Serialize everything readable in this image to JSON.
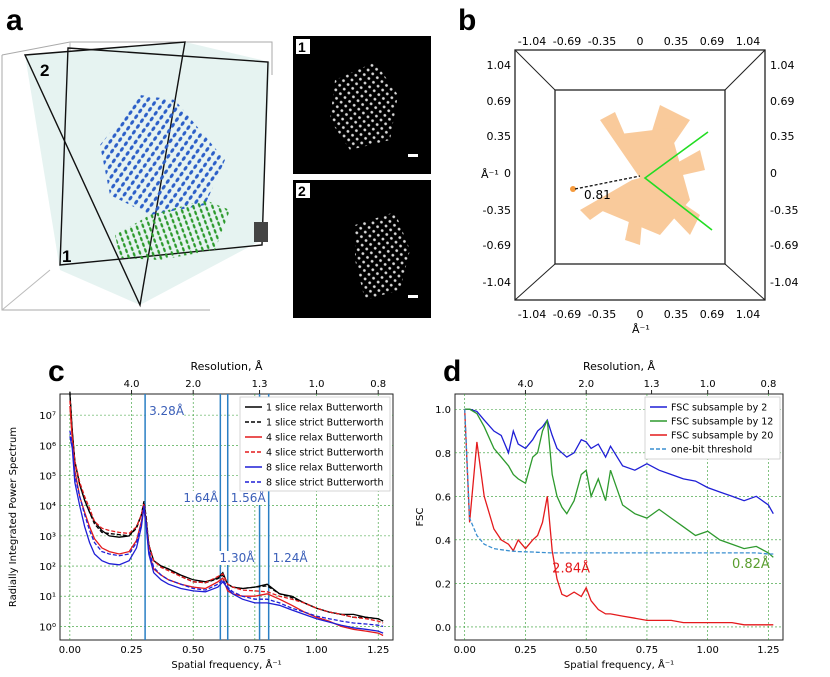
{
  "panels": {
    "a": {
      "label": "a",
      "plane1": "1",
      "plane2": "2",
      "inset1_num": "1",
      "inset2_num": "2"
    },
    "b": {
      "label": "b",
      "top_ticks": [
        "-1.04",
        "-0.69",
        "-0.35",
        "0",
        "0.35",
        "0.69",
        "1.04"
      ],
      "bottom_ticks": [
        "-1.04",
        "-0.69",
        "-0.35",
        "0",
        "0.35",
        "0.69",
        "1.04"
      ],
      "left_ticks": [
        "1.04",
        "0.69",
        "0.35",
        "0",
        "-0.35",
        "-0.69",
        "-1.04"
      ],
      "right_ticks": [
        "1.04",
        "0.69",
        "0.35",
        "0",
        "-0.35",
        "-0.69",
        "-1.04"
      ],
      "y_label": "Å⁻¹",
      "x_label": "Å⁻¹",
      "annotation": "0.81"
    },
    "c": {
      "label": "c"
    },
    "d": {
      "label": "d"
    }
  },
  "chart_data": [
    {
      "type": "line",
      "id": "c",
      "title": "Resolution, Å",
      "xlabel": "Spatial frequency, Å⁻¹",
      "ylabel": "Radially Integrated Power Spectrum",
      "xlim": [
        -0.04,
        1.31
      ],
      "ylim_log10": [
        -0.45,
        7.7
      ],
      "xticks": [
        "0.00",
        "0.25",
        "0.50",
        "0.75",
        "1.00",
        "1.25"
      ],
      "yticks": [
        "10⁰",
        "10¹",
        "10²",
        "10³",
        "10⁴",
        "10⁵",
        "10⁶",
        "10⁷"
      ],
      "top_ticks": [
        {
          "label": "4.0",
          "x": 0.25
        },
        {
          "label": "2.0",
          "x": 0.5
        },
        {
          "label": "1.3",
          "x": 0.769
        },
        {
          "label": "1.0",
          "x": 1.0
        },
        {
          "label": "0.8",
          "x": 1.25
        }
      ],
      "vlines": [
        {
          "x": 0.305,
          "label": "3.28Å"
        },
        {
          "x": 0.61,
          "label": "1.64Å"
        },
        {
          "x": 0.64,
          "label": "1.56Å"
        },
        {
          "x": 0.769,
          "label": "1.30Å"
        },
        {
          "x": 0.806,
          "label": "1.24Å"
        }
      ],
      "legend": [
        {
          "name": "1 slice relax Butterworth",
          "color": "#000000",
          "dash": false
        },
        {
          "name": "1 slice strict Butterworth",
          "color": "#000000",
          "dash": true
        },
        {
          "name": "4 slice relax Butterworth",
          "color": "#e41a1c",
          "dash": false
        },
        {
          "name": "4 slice strict Butterworth",
          "color": "#e41a1c",
          "dash": true
        },
        {
          "name": "8 slice relax Butterworth",
          "color": "#1f1fd6",
          "dash": false
        },
        {
          "name": "8 slice strict Butterworth",
          "color": "#1f1fd6",
          "dash": true
        }
      ],
      "x": [
        0.0,
        0.01,
        0.02,
        0.04,
        0.06,
        0.08,
        0.1,
        0.13,
        0.16,
        0.2,
        0.24,
        0.27,
        0.29,
        0.3,
        0.31,
        0.32,
        0.34,
        0.37,
        0.4,
        0.45,
        0.5,
        0.55,
        0.6,
        0.62,
        0.64,
        0.66,
        0.7,
        0.75,
        0.8,
        0.85,
        0.9,
        0.95,
        1.0,
        1.05,
        1.1,
        1.15,
        1.2,
        1.25,
        1.27
      ],
      "series": [
        {
          "name": "1 slice relax Butterworth",
          "color": "#000000",
          "dash": false,
          "values": [
            50000000.0,
            3000000.0,
            300000.0,
            50000.0,
            15000.0,
            6000.0,
            3000.0,
            1500.0,
            1000.0,
            900,
            1000,
            2000.0,
            5000.0,
            12000.0,
            3000.0,
            500,
            150,
            100,
            80,
            50,
            35,
            30,
            40,
            60,
            25,
            20,
            18,
            20,
            25,
            12,
            10,
            6,
            4,
            3,
            2.5,
            2.5,
            2,
            1.8,
            1.5
          ]
        },
        {
          "name": "1 slice strict Butterworth",
          "color": "#000000",
          "dash": true,
          "values": [
            60000000.0,
            2500000.0,
            300000.0,
            50000.0,
            15000.0,
            6000.0,
            2500.0,
            1300.0,
            1200.0,
            1100.0,
            1000,
            1800.0,
            5000.0,
            14000.0,
            4000.0,
            500,
            150,
            100,
            80,
            45,
            30,
            28,
            38,
            50,
            25,
            20,
            18,
            20,
            22,
            12,
            9,
            6,
            4,
            3,
            2.5,
            2,
            2,
            1.8,
            1.5
          ]
        },
        {
          "name": "4 slice relax Butterworth",
          "color": "#e41a1c",
          "dash": false,
          "values": [
            20000000.0,
            1500000.0,
            150000.0,
            20000.0,
            6000.0,
            2000.0,
            800,
            400,
            300,
            250,
            300,
            700,
            3000.0,
            8000.0,
            2000.0,
            300,
            80,
            50,
            35,
            25,
            20,
            18,
            30,
            40,
            15,
            12,
            10,
            10,
            12,
            8,
            5,
            3,
            2,
            1.5,
            1,
            0.8,
            0.7,
            0.6,
            0.5
          ]
        },
        {
          "name": "4 slice strict Butterworth",
          "color": "#e41a1c",
          "dash": true,
          "values": [
            30000000.0,
            2000000.0,
            300000.0,
            60000.0,
            20000.0,
            8000.0,
            3000.0,
            1800.0,
            1500.0,
            1300.0,
            1200,
            2000.0,
            5000.0,
            12000.0,
            3000.0,
            500,
            150,
            90,
            70,
            45,
            30,
            28,
            45,
            55,
            25,
            20,
            16,
            15,
            14,
            10,
            8,
            6,
            4,
            3,
            2.5,
            2,
            1.8,
            1.5,
            1.3
          ]
        },
        {
          "name": "8 slice relax Butterworth",
          "color": "#1f1fd6",
          "dash": false,
          "values": [
            2000000.0,
            800000.0,
            60000.0,
            10000.0,
            2000.0,
            600,
            250,
            150,
            120,
            110,
            150,
            400,
            2000.0,
            9000.0,
            2000.0,
            250,
            60,
            35,
            25,
            18,
            15,
            14,
            20,
            30,
            18,
            12,
            8,
            6,
            6,
            5,
            3.5,
            2.5,
            1.8,
            1.4,
            1.1,
            0.9,
            0.8,
            0.7,
            0.6
          ]
        },
        {
          "name": "8 slice strict Butterworth",
          "color": "#1f1fd6",
          "dash": true,
          "values": [
            3000000.0,
            1000000.0,
            100000.0,
            20000.0,
            5000.0,
            1500.0,
            600,
            300,
            250,
            220,
            250,
            600,
            2500.0,
            10000.0,
            2500.0,
            350,
            90,
            50,
            35,
            25,
            18,
            16,
            25,
            35,
            20,
            14,
            10,
            8,
            8,
            6,
            4,
            3,
            2.2,
            1.8,
            1.5,
            1.3,
            1.2,
            1.1,
            1
          ]
        }
      ]
    },
    {
      "type": "line",
      "id": "d",
      "title": "Resolution, Å",
      "xlabel": "Spatial frequency, Å⁻¹",
      "ylabel": "FSC",
      "xlim": [
        -0.04,
        1.31
      ],
      "ylim": [
        -0.06,
        1.07
      ],
      "xticks": [
        "0.00",
        "0.25",
        "0.50",
        "0.75",
        "1.00",
        "1.25"
      ],
      "yticks": [
        "0.0",
        "0.2",
        "0.4",
        "0.6",
        "0.8",
        "1.0"
      ],
      "top_ticks": [
        {
          "label": "4.0",
          "x": 0.25
        },
        {
          "label": "2.0",
          "x": 0.5
        },
        {
          "label": "1.3",
          "x": 0.769
        },
        {
          "label": "1.0",
          "x": 1.0
        },
        {
          "label": "0.8",
          "x": 1.25
        }
      ],
      "annotations": [
        {
          "text": "2.84Å",
          "x": 0.36,
          "y": 0.25,
          "color": "#e41a1c"
        },
        {
          "text": "0.82Å",
          "x": 1.1,
          "y": 0.27,
          "color": "#5a9e2f"
        }
      ],
      "legend": [
        {
          "name": "FSC subsample by 2",
          "color": "#1f1fd6",
          "dash": false
        },
        {
          "name": "FSC subsample by 12",
          "color": "#2e9a2e",
          "dash": false
        },
        {
          "name": "FSC subsample by 20",
          "color": "#e41a1c",
          "dash": false
        },
        {
          "name": "one-bit threshold",
          "color": "#3a8fd0",
          "dash": true
        }
      ],
      "x": [
        0.0,
        0.02,
        0.05,
        0.08,
        0.12,
        0.15,
        0.18,
        0.2,
        0.22,
        0.25,
        0.28,
        0.3,
        0.32,
        0.34,
        0.36,
        0.38,
        0.4,
        0.42,
        0.45,
        0.48,
        0.5,
        0.52,
        0.55,
        0.58,
        0.6,
        0.65,
        0.7,
        0.75,
        0.8,
        0.85,
        0.9,
        0.95,
        1.0,
        1.05,
        1.1,
        1.15,
        1.2,
        1.25,
        1.27
      ],
      "series": [
        {
          "name": "FSC subsample by 2",
          "color": "#1f1fd6",
          "dash": false,
          "values": [
            1.0,
            1.0,
            0.99,
            0.95,
            0.9,
            0.88,
            0.8,
            0.9,
            0.84,
            0.82,
            0.86,
            0.9,
            0.92,
            0.95,
            0.88,
            0.82,
            0.8,
            0.78,
            0.8,
            0.86,
            0.85,
            0.82,
            0.84,
            0.78,
            0.83,
            0.74,
            0.72,
            0.75,
            0.72,
            0.7,
            0.68,
            0.67,
            0.64,
            0.62,
            0.6,
            0.58,
            0.6,
            0.56,
            0.52
          ]
        },
        {
          "name": "FSC subsample by 12",
          "color": "#2e9a2e",
          "dash": false,
          "values": [
            1.0,
            1.0,
            0.98,
            0.92,
            0.82,
            0.78,
            0.74,
            0.7,
            0.68,
            0.66,
            0.78,
            0.8,
            0.9,
            0.95,
            0.7,
            0.6,
            0.55,
            0.52,
            0.58,
            0.7,
            0.72,
            0.6,
            0.68,
            0.58,
            0.72,
            0.56,
            0.52,
            0.5,
            0.54,
            0.5,
            0.46,
            0.42,
            0.44,
            0.4,
            0.38,
            0.36,
            0.37,
            0.34,
            0.32
          ]
        },
        {
          "name": "FSC subsample by 20",
          "color": "#e41a1c",
          "dash": false,
          "values": [
            1.0,
            0.48,
            0.85,
            0.6,
            0.45,
            0.4,
            0.38,
            0.35,
            0.4,
            0.36,
            0.4,
            0.42,
            0.48,
            0.6,
            0.35,
            0.22,
            0.15,
            0.14,
            0.16,
            0.14,
            0.18,
            0.12,
            0.08,
            0.06,
            0.06,
            0.05,
            0.04,
            0.03,
            0.03,
            0.03,
            0.02,
            0.02,
            0.02,
            0.02,
            0.02,
            0.01,
            0.01,
            0.01,
            0.01
          ]
        },
        {
          "name": "one-bit threshold",
          "color": "#3a8fd0",
          "dash": true,
          "values": [
            1.0,
            0.5,
            0.42,
            0.38,
            0.36,
            0.355,
            0.35,
            0.348,
            0.346,
            0.345,
            0.344,
            0.343,
            0.342,
            0.341,
            0.34,
            0.34,
            0.34,
            0.34,
            0.34,
            0.34,
            0.34,
            0.34,
            0.34,
            0.34,
            0.34,
            0.34,
            0.34,
            0.34,
            0.34,
            0.34,
            0.34,
            0.34,
            0.34,
            0.34,
            0.34,
            0.34,
            0.34,
            0.335,
            0.335
          ]
        }
      ]
    }
  ]
}
